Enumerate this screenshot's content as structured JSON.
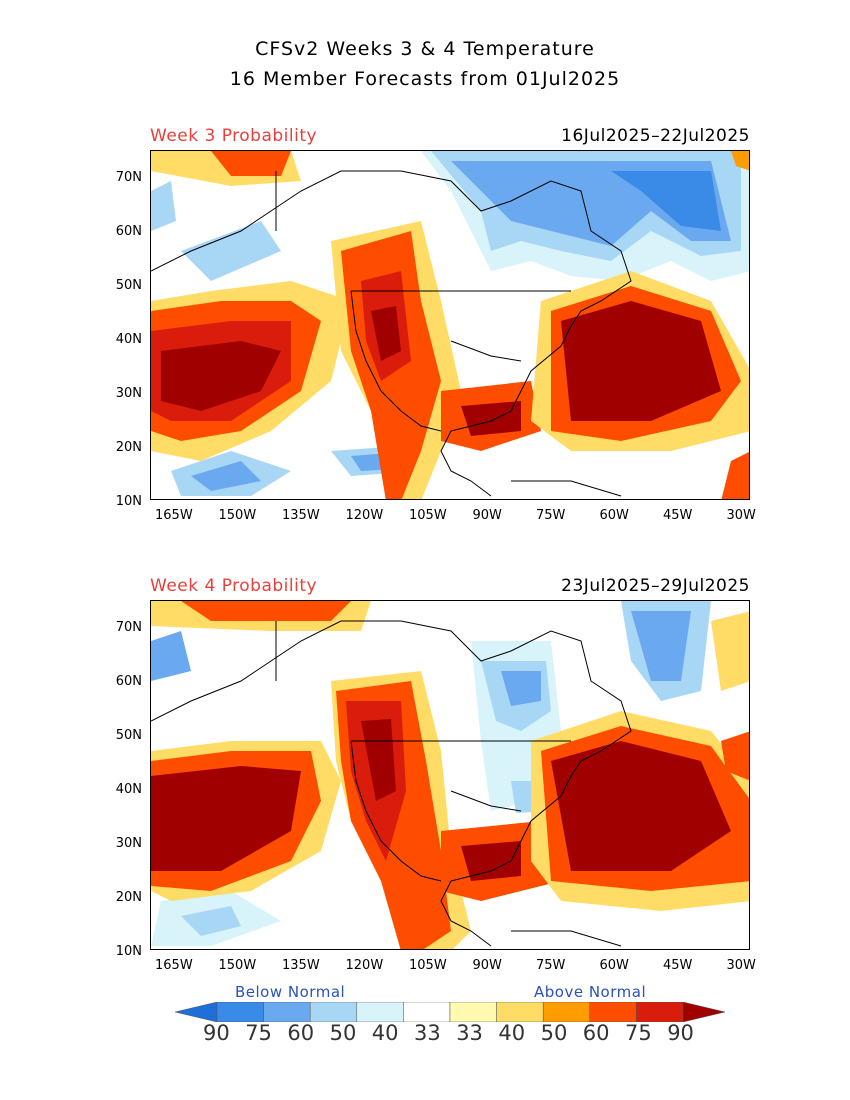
{
  "title": {
    "line1": "CFSv2 Weeks 3 & 4 Temperature",
    "line2": "16 Member Forecasts from 01Jul2025"
  },
  "panels": [
    {
      "label": "Week 3 Probability",
      "dates": "16Jul2025–22Jul2025"
    },
    {
      "label": "Week 4 Probability",
      "dates": "23Jul2025–29Jul2025"
    }
  ],
  "latitude_ticks": [
    "70N",
    "60N",
    "50N",
    "40N",
    "30N",
    "20N",
    "10N"
  ],
  "longitude_ticks": [
    "165W",
    "150W",
    "135W",
    "120W",
    "105W",
    "90W",
    "75W",
    "60W",
    "45W",
    "30W"
  ],
  "colorbar": {
    "below_label": "Below Normal",
    "above_label": "Above Normal",
    "tick_labels": [
      "90",
      "75",
      "60",
      "50",
      "40",
      "33",
      "33",
      "40",
      "50",
      "60",
      "75",
      "90"
    ],
    "colors": [
      "#1e6fd9",
      "#3a8ae8",
      "#6aa9ef",
      "#a8d6f5",
      "#d9f3fb",
      "#ffffff",
      "#fffab0",
      "#ffdc66",
      "#ff9d00",
      "#ff4d00",
      "#d91c0c",
      "#a00000"
    ]
  }
}
